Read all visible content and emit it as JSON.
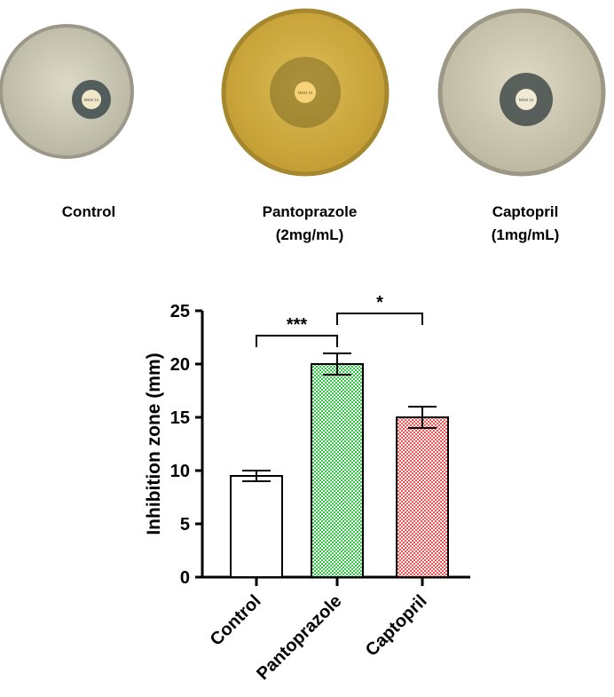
{
  "plates": [
    {
      "label_line1": "Control",
      "label_line2": "",
      "disk_text": "MEM 10",
      "plate_color": "#ccc9b4",
      "rim_color": "#9b9889",
      "zone_color": "#3d4a4c"
    },
    {
      "label_line1": "Pantoprazole",
      "label_line2": "(2mg/mL)",
      "disk_text": "MEM 10",
      "plate_color": "#d4b043",
      "rim_color": "#a5872f",
      "zone_color": "#6d5a20"
    },
    {
      "label_line1": "Captopril",
      "label_line2": "(1mg/mL)",
      "disk_text": "MEM 10",
      "plate_color": "#d2cdb6",
      "rim_color": "#9c9886",
      "zone_color": "#3a4242"
    }
  ],
  "chart_data": {
    "type": "bar",
    "categories": [
      "Control",
      "Pantoprazole",
      "Captopril"
    ],
    "values": [
      9.5,
      20,
      15
    ],
    "errors": [
      0.5,
      1,
      1
    ],
    "ylabel": "Inhibition zone (mm)",
    "xlabel": "",
    "ylim": [
      0,
      25
    ],
    "yticks": [
      0,
      5,
      10,
      15,
      20,
      25
    ],
    "grid": false,
    "bar_fills": [
      "#ffffff",
      "#2ecc40",
      "#ff4d4d"
    ],
    "bar_patterns": [
      "none",
      "checker",
      "checker"
    ],
    "significance": [
      {
        "from": "Control",
        "to": "Pantoprazole",
        "label": "***"
      },
      {
        "from": "Pantoprazole",
        "to": "Captopril",
        "label": "*"
      }
    ]
  }
}
